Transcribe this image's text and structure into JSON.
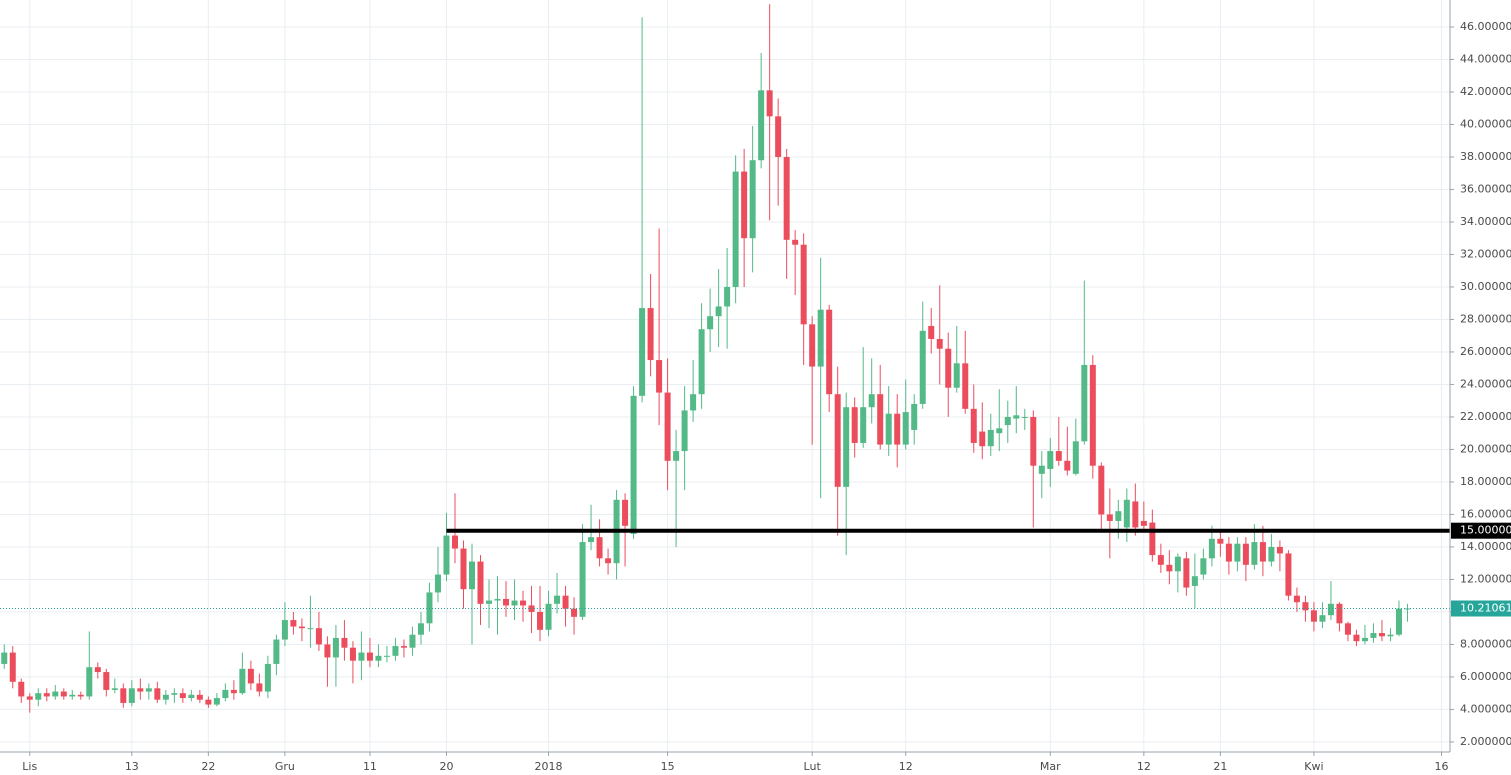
{
  "chart_data": {
    "type": "candlestick",
    "up_color": "#53b987",
    "down_color": "#eb4d5c",
    "grid": true,
    "xlim": [
      -3.5,
      167
    ],
    "ylim": [
      1.38,
      47.66
    ],
    "xticks": [
      {
        "value": 0,
        "label": "Lis"
      },
      {
        "value": 12,
        "label": "13"
      },
      {
        "value": 21,
        "label": "22"
      },
      {
        "value": 30,
        "label": "Gru"
      },
      {
        "value": 40,
        "label": "11"
      },
      {
        "value": 49,
        "label": "20"
      },
      {
        "value": 61,
        "label": "2018"
      },
      {
        "value": 75,
        "label": "15"
      },
      {
        "value": 92,
        "label": "Lut"
      },
      {
        "value": 103,
        "label": "12"
      },
      {
        "value": 120,
        "label": "Mar"
      },
      {
        "value": 131,
        "label": "12"
      },
      {
        "value": 140,
        "label": "21"
      },
      {
        "value": 151,
        "label": "Kwi"
      },
      {
        "value": 166,
        "label": "16"
      }
    ],
    "yticks": [
      {
        "value": 2,
        "label": "2.000000"
      },
      {
        "value": 4,
        "label": "4.000000"
      },
      {
        "value": 6,
        "label": "6.000000"
      },
      {
        "value": 8,
        "label": "8.000000"
      },
      {
        "value": 10,
        "label": "10.000000"
      },
      {
        "value": 12,
        "label": "12.000000"
      },
      {
        "value": 14,
        "label": "14.000000"
      },
      {
        "value": 16,
        "label": "16.000000"
      },
      {
        "value": 18,
        "label": "18.000000"
      },
      {
        "value": 20,
        "label": "20.000000"
      },
      {
        "value": 22,
        "label": "22.000000"
      },
      {
        "value": 24,
        "label": "24.000000"
      },
      {
        "value": 26,
        "label": "26.000000"
      },
      {
        "value": 28,
        "label": "28.000000"
      },
      {
        "value": 30,
        "label": "30.000000"
      },
      {
        "value": 32,
        "label": "32.000000"
      },
      {
        "value": 34,
        "label": "34.000000"
      },
      {
        "value": 36,
        "label": "36.000000"
      },
      {
        "value": 38,
        "label": "38.000000"
      },
      {
        "value": 40,
        "label": "40.000000"
      },
      {
        "value": 42,
        "label": "42.000000"
      },
      {
        "value": 44,
        "label": "44.000000"
      },
      {
        "value": 46,
        "label": "46.000000"
      }
    ],
    "levels": [
      {
        "value": 15,
        "label": "15.000000",
        "color": "#000000",
        "x_start": 49
      }
    ],
    "last_price": {
      "value": 10.210616,
      "color": "#26a69a"
    },
    "x": [
      -3,
      -2,
      -1,
      0,
      1,
      2,
      3,
      4,
      5,
      6,
      7,
      8,
      9,
      10,
      11,
      12,
      13,
      14,
      15,
      16,
      17,
      18,
      19,
      20,
      21,
      22,
      23,
      24,
      25,
      26,
      27,
      28,
      29,
      30,
      31,
      32,
      33,
      34,
      35,
      36,
      37,
      38,
      39,
      40,
      41,
      42,
      43,
      44,
      45,
      46,
      47,
      48,
      49,
      50,
      51,
      52,
      53,
      54,
      55,
      56,
      57,
      58,
      59,
      60,
      61,
      62,
      63,
      64,
      65,
      66,
      67,
      68,
      69,
      70,
      71,
      72,
      73,
      74,
      75,
      76,
      77,
      78,
      79,
      80,
      81,
      82,
      83,
      84,
      85,
      86,
      87,
      88,
      89,
      90,
      91,
      92,
      93,
      94,
      95,
      96,
      97,
      98,
      99,
      100,
      101,
      102,
      103,
      104,
      105,
      106,
      107,
      108,
      109,
      110,
      111,
      112,
      113,
      114,
      115,
      116,
      117,
      118,
      119,
      120,
      121,
      122,
      123,
      124,
      125,
      126,
      127,
      128,
      129,
      130,
      131,
      132,
      133,
      134,
      135,
      136,
      137,
      138,
      139,
      140,
      141,
      142,
      143,
      144,
      145,
      146,
      147,
      148,
      149,
      150,
      151,
      152,
      153,
      154,
      155,
      156,
      157,
      158,
      159,
      160,
      161,
      162
    ],
    "open": [
      6.8,
      7.5,
      5.7,
      4.8,
      4.6,
      5.0,
      4.8,
      5.1,
      4.8,
      4.9,
      4.8,
      6.6,
      6.3,
      5.2,
      5.3,
      4.4,
      5.3,
      5.1,
      5.3,
      4.6,
      4.9,
      5.0,
      4.7,
      4.9,
      4.6,
      4.3,
      4.7,
      5.2,
      5.0,
      6.5,
      5.6,
      5.1,
      6.8,
      8.3,
      9.5,
      9.1,
      9.0,
      9.0,
      8.0,
      7.2,
      8.4,
      7.8,
      7.0,
      7.5,
      7.0,
      7.3,
      7.3,
      7.9,
      7.8,
      8.6,
      9.3,
      11.2,
      12.3,
      14.7,
      13.9,
      11.4,
      13.1,
      10.5,
      10.7,
      10.8,
      10.4,
      10.7,
      10.4,
      10.0,
      8.9,
      10.5,
      11.0,
      10.2,
      9.7,
      14.3,
      14.6,
      13.3,
      13.0,
      16.9,
      14.8,
      23.3,
      28.7,
      25.5,
      23.5,
      19.3,
      19.9,
      22.4,
      23.4,
      27.4,
      28.2,
      28.8,
      30.0,
      37.1,
      33.0,
      37.8,
      42.1,
      40.5,
      38.0,
      32.9,
      32.6,
      27.7,
      25.1,
      28.6,
      23.4,
      17.7,
      22.6,
      20.4,
      22.6,
      23.4,
      20.3,
      22.2,
      20.3,
      21.2,
      22.8,
      27.6,
      26.8,
      26.2,
      23.8,
      25.3,
      22.5,
      21.1,
      20.2,
      21.0,
      21.5,
      21.9,
      22.0,
      22.0,
      18.5,
      18.8,
      19.9,
      19.3,
      18.5,
      20.5,
      25.2,
      19.0,
      16.0,
      15.6,
      15.2,
      16.8,
      15.6,
      15.5,
      13.5,
      12.9,
      12.5,
      13.3,
      11.6,
      12.3,
      13.3,
      14.5,
      14.2,
      13.1,
      14.2,
      12.9,
      14.3,
      13.1,
      14.0,
      13.6,
      11.0,
      10.6,
      10.1,
      9.4,
      9.8,
      10.5,
      9.3,
      8.6,
      8.2,
      8.4,
      8.7,
      8.5,
      8.6,
      10.2
    ],
    "high": [
      8.0,
      7.9,
      5.9,
      5.0,
      5.3,
      5.3,
      5.5,
      5.3,
      5.2,
      5.1,
      8.8,
      6.9,
      6.5,
      5.9,
      5.6,
      5.8,
      5.9,
      5.6,
      5.7,
      5.2,
      5.3,
      5.3,
      5.2,
      5.2,
      4.8,
      5.0,
      5.6,
      5.8,
      7.5,
      7.0,
      6.2,
      7.3,
      8.6,
      10.6,
      10.0,
      9.6,
      11.0,
      10.0,
      8.5,
      9.2,
      9.5,
      8.2,
      8.8,
      8.4,
      8.0,
      7.9,
      8.4,
      8.3,
      9.1,
      10.0,
      11.8,
      14.0,
      16.1,
      17.3,
      14.4,
      14.2,
      13.5,
      12.0,
      12.2,
      11.9,
      12.0,
      11.3,
      11.6,
      11.6,
      11.3,
      12.4,
      11.6,
      10.9,
      15.4,
      16.6,
      15.7,
      13.9,
      17.5,
      17.3,
      23.9,
      46.6,
      30.8,
      33.6,
      25.6,
      21.2,
      23.9,
      25.5,
      29.0,
      29.9,
      31.1,
      32.4,
      38.1,
      38.5,
      39.9,
      44.4,
      47.4,
      41.6,
      38.5,
      33.5,
      33.3,
      28.2,
      31.8,
      28.9,
      25.1,
      23.5,
      23.2,
      26.3,
      25.6,
      25.2,
      23.9,
      23.4,
      24.3,
      23.4,
      29.1,
      28.7,
      30.1,
      27.2,
      27.6,
      27.3,
      24.0,
      22.9,
      22.2,
      23.7,
      23.0,
      23.9,
      22.5,
      22.4,
      19.9,
      20.7,
      22.0,
      21.4,
      21.9,
      30.4,
      25.8,
      19.2,
      17.6,
      16.9,
      17.6,
      17.9,
      16.8,
      16.3,
      14.2,
      13.8,
      13.6,
      13.7,
      13.6,
      13.9,
      15.3,
      15.0,
      14.6,
      14.6,
      14.6,
      15.4,
      15.3,
      14.8,
      14.4,
      13.8,
      11.5,
      11.0,
      10.6,
      10.6,
      11.9,
      10.6,
      9.4,
      8.9,
      9.2,
      9.3,
      9.5,
      9.0,
      10.7,
      10.5
    ],
    "low": [
      6.5,
      5.3,
      4.4,
      3.8,
      4.2,
      4.5,
      4.6,
      4.6,
      4.6,
      4.6,
      4.6,
      5.9,
      4.8,
      5.0,
      4.1,
      4.2,
      4.6,
      4.6,
      4.4,
      4.3,
      4.4,
      4.4,
      4.5,
      4.4,
      4.1,
      4.2,
      4.5,
      4.6,
      4.9,
      5.2,
      4.8,
      4.7,
      6.1,
      7.9,
      8.6,
      8.2,
      7.8,
      7.6,
      5.4,
      5.4,
      7.0,
      5.6,
      5.8,
      6.6,
      6.6,
      6.9,
      7.0,
      7.2,
      7.3,
      8.0,
      8.8,
      10.6,
      11.9,
      13.0,
      10.2,
      8.0,
      9.2,
      9.0,
      8.6,
      9.7,
      9.5,
      9.4,
      8.7,
      8.2,
      8.5,
      9.9,
      9.1,
      8.6,
      9.5,
      13.8,
      12.8,
      12.3,
      12.0,
      12.8,
      14.5,
      22.9,
      24.5,
      21.5,
      17.5,
      14.0,
      17.5,
      21.7,
      22.5,
      26.0,
      26.3,
      26.2,
      29.0,
      30.0,
      30.9,
      37.3,
      34.1,
      35.0,
      30.5,
      29.5,
      25.2,
      20.3,
      17.0,
      22.3,
      14.7,
      13.5,
      19.5,
      20.1,
      21.6,
      20.0,
      19.6,
      18.9,
      20.0,
      20.3,
      22.5,
      25.9,
      24.0,
      22.0,
      23.5,
      22.2,
      19.8,
      19.4,
      19.6,
      19.9,
      20.4,
      21.0,
      21.2,
      15.2,
      17.0,
      17.7,
      19.0,
      18.4,
      18.4,
      20.3,
      18.2,
      14.9,
      13.3,
      14.5,
      14.3,
      14.7,
      14.9,
      13.1,
      12.4,
      11.7,
      11.2,
      11.0,
      10.2,
      12.0,
      12.8,
      13.4,
      12.3,
      12.5,
      11.9,
      12.6,
      12.2,
      12.8,
      12.5,
      10.7,
      10.0,
      9.4,
      8.8,
      9.0,
      9.5,
      8.8,
      8.2,
      7.9,
      8.0,
      8.1,
      8.2,
      8.2,
      8.5,
      9.4
    ],
    "close": [
      7.5,
      5.7,
      4.8,
      4.6,
      5.0,
      4.8,
      5.1,
      4.8,
      4.9,
      4.8,
      6.6,
      6.3,
      5.2,
      5.3,
      4.4,
      5.3,
      5.1,
      5.3,
      4.6,
      4.9,
      5.0,
      4.7,
      4.9,
      4.6,
      4.3,
      4.7,
      5.2,
      5.0,
      6.5,
      5.6,
      5.1,
      6.8,
      8.3,
      9.5,
      9.1,
      9.0,
      9.0,
      8.0,
      7.2,
      8.4,
      7.8,
      7.0,
      7.5,
      7.0,
      7.3,
      7.3,
      7.9,
      7.8,
      8.6,
      9.3,
      11.2,
      12.3,
      14.7,
      13.9,
      11.4,
      13.1,
      10.5,
      10.7,
      10.8,
      10.4,
      10.7,
      10.4,
      10.0,
      8.9,
      10.5,
      11.0,
      10.2,
      9.7,
      14.3,
      14.6,
      13.3,
      13.0,
      16.9,
      15.3,
      23.3,
      28.7,
      25.5,
      23.5,
      19.3,
      19.9,
      22.4,
      23.4,
      27.4,
      28.2,
      28.8,
      30.0,
      37.1,
      33.0,
      37.8,
      42.1,
      40.5,
      38.0,
      32.9,
      32.6,
      27.7,
      25.1,
      28.6,
      23.4,
      17.7,
      22.6,
      20.4,
      22.6,
      23.4,
      20.3,
      22.2,
      20.3,
      22.3,
      22.8,
      27.3,
      26.8,
      26.2,
      23.8,
      25.3,
      22.5,
      20.4,
      20.2,
      21.2,
      21.3,
      22.0,
      22.1,
      22.0,
      19.0,
      19.0,
      19.9,
      19.3,
      18.7,
      20.5,
      25.2,
      19.0,
      16.0,
      15.6,
      16.2,
      16.9,
      15.2,
      15.3,
      13.5,
      12.9,
      12.5,
      13.4,
      11.5,
      12.2,
      13.3,
      14.5,
      14.2,
      13.1,
      14.2,
      12.9,
      14.3,
      13.1,
      14.0,
      13.6,
      11.0,
      10.6,
      10.1,
      9.4,
      9.8,
      10.5,
      9.3,
      8.6,
      8.2,
      8.4,
      8.7,
      8.5,
      8.6,
      10.2,
      10.210616
    ]
  }
}
